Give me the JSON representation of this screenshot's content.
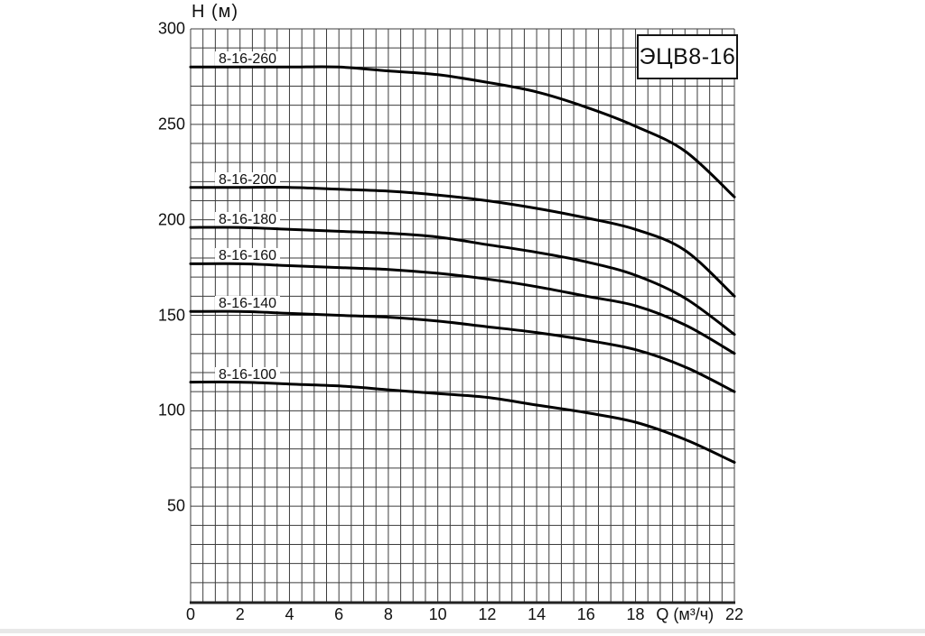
{
  "page": {
    "background": "#ffffff"
  },
  "chart_data": {
    "type": "line",
    "title_box": "ЭЦВ8-16",
    "ylabel": "H (м)",
    "xlabel": "Q (м³/ч)",
    "xlim": [
      0,
      22
    ],
    "ylim": [
      0,
      300
    ],
    "grid": true,
    "x_grid_step": 0.5,
    "y_grid_step": 10,
    "x_ticks": [
      0,
      2,
      4,
      6,
      8,
      10,
      12,
      14,
      16,
      18,
      22
    ],
    "xlabel_at": 20,
    "y_ticks": [
      50,
      100,
      150,
      200,
      250,
      300
    ],
    "legend_position": "labels-on-curves",
    "line_color": "#000000",
    "grid_color": "#3c3c3c",
    "axis_color": "#222222",
    "x": [
      0,
      2,
      4,
      6,
      8,
      10,
      12,
      14,
      16,
      18,
      20,
      22
    ],
    "series": [
      {
        "name": "8-16-260",
        "values": [
          280,
          280,
          280,
          280,
          278,
          276,
          272,
          267,
          259,
          249,
          236,
          212
        ]
      },
      {
        "name": "8-16-200",
        "values": [
          217,
          217,
          217,
          216,
          215,
          213,
          210,
          206,
          201,
          195,
          184,
          160
        ]
      },
      {
        "name": "8-16-180",
        "values": [
          196,
          196,
          195,
          194,
          193,
          191,
          187,
          183,
          178,
          171,
          159,
          140
        ]
      },
      {
        "name": "8-16-160",
        "values": [
          177,
          177,
          176,
          175,
          174,
          172,
          169,
          165,
          160,
          155,
          145,
          130
        ]
      },
      {
        "name": "8-16-140",
        "values": [
          152,
          152,
          151,
          150,
          149,
          147,
          144,
          141,
          137,
          132,
          123,
          110
        ]
      },
      {
        "name": "8-16-100",
        "values": [
          115,
          115,
          114,
          113,
          111,
          109,
          107,
          103,
          99,
          94,
          85,
          73
        ]
      }
    ]
  }
}
